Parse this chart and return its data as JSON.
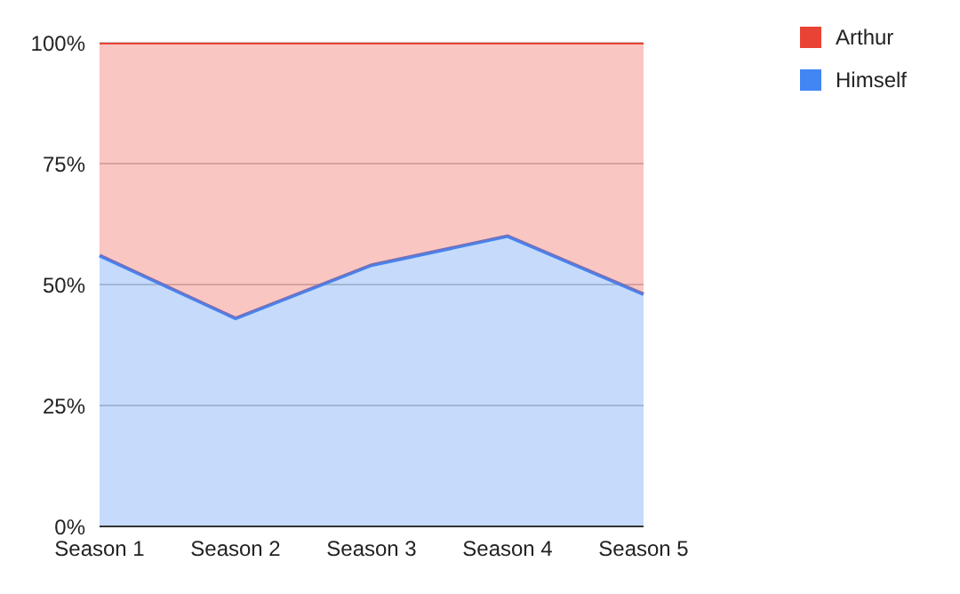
{
  "chart_data": {
    "type": "area",
    "stacked": true,
    "categories": [
      "Season 1",
      "Season 2",
      "Season 3",
      "Season 4",
      "Season 5"
    ],
    "series": [
      {
        "name": "Himself",
        "color": "#4285f4",
        "values": [
          56,
          43,
          54,
          60,
          48
        ]
      },
      {
        "name": "Arthur",
        "color": "#ea4335",
        "values": [
          44,
          57,
          46,
          40,
          52
        ]
      }
    ],
    "ylim": [
      0,
      100
    ],
    "yticks": [
      {
        "value": 0,
        "label": "0%"
      },
      {
        "value": 25,
        "label": "25%"
      },
      {
        "value": 50,
        "label": "50%"
      },
      {
        "value": 75,
        "label": "75%"
      },
      {
        "value": 100,
        "label": "100%"
      }
    ],
    "grid": "y",
    "legend": "top right"
  }
}
